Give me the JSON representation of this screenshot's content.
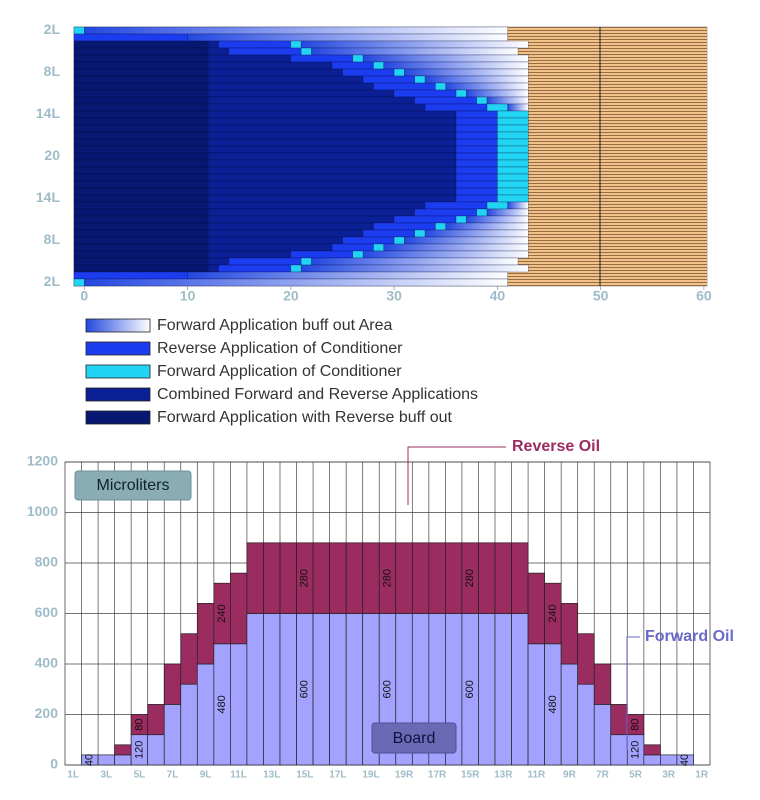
{
  "chart_data": [
    {
      "type": "stacked_barh",
      "categories": [
        "2L",
        null,
        null,
        null,
        null,
        null,
        "8L",
        null,
        null,
        null,
        null,
        null,
        "14L",
        null,
        null,
        null,
        null,
        null,
        "20",
        null,
        null,
        null,
        null,
        null,
        "14L",
        null,
        null,
        null,
        null,
        null,
        "8L",
        null,
        null,
        null,
        null,
        null,
        "2L"
      ],
      "series": [
        {
          "name": "Forward Application buff out Area",
          "color": [
            "#2448e0",
            "#ffffff"
          ],
          "values": [
            41,
            31,
            22,
            20,
            16,
            14,
            12,
            10,
            8,
            6,
            4,
            2,
            0,
            0,
            0,
            0,
            0,
            0,
            0,
            0,
            0,
            0,
            0,
            0,
            0,
            2,
            4,
            6,
            8,
            10,
            12,
            14,
            16,
            20,
            22,
            31,
            41
          ]
        },
        {
          "name": "Reverse Application of Conditioner",
          "color": "#1c3cf0",
          "values": [
            0,
            11,
            7,
            7,
            6,
            4,
            5,
            5,
            6,
            6,
            6,
            6,
            4,
            4,
            4,
            4,
            4,
            4,
            4,
            4,
            4,
            4,
            4,
            4,
            4,
            6,
            6,
            6,
            6,
            5,
            5,
            4,
            6,
            7,
            7,
            11,
            0
          ]
        },
        {
          "name": "Forward Application of Conditioner",
          "color": "#22d4f4",
          "values": [
            1,
            0,
            1,
            1,
            1,
            1,
            1,
            1,
            1,
            1,
            1,
            2,
            3,
            3,
            3,
            3,
            3,
            3,
            3,
            3,
            3,
            3,
            3,
            3,
            3,
            2,
            1,
            1,
            1,
            1,
            1,
            1,
            1,
            1,
            1,
            0,
            1
          ]
        },
        {
          "name": "Combined Forward and Reverse Applications",
          "color": "#0a2094",
          "values": [
            0,
            0,
            1,
            2,
            8,
            12,
            13,
            15,
            16,
            18,
            20,
            21,
            24,
            24,
            24,
            24,
            24,
            24,
            24,
            24,
            24,
            24,
            24,
            24,
            24,
            21,
            20,
            18,
            16,
            15,
            13,
            12,
            8,
            2,
            1,
            0,
            0
          ]
        },
        {
          "name": "Forward Application with Reverse buff out",
          "color": "#061872",
          "values": [
            0,
            0,
            13,
            13,
            13,
            13,
            13,
            13,
            13,
            13,
            13,
            13,
            13,
            13,
            13,
            13,
            13,
            13,
            13,
            13,
            13,
            13,
            13,
            13,
            13,
            13,
            13,
            13,
            13,
            13,
            13,
            13,
            13,
            13,
            13,
            0,
            0
          ]
        }
      ],
      "xlim": [
        -1,
        60.3
      ],
      "xticks": [
        0,
        10,
        20,
        30,
        40,
        50,
        60
      ]
    },
    {
      "type": "stacked_bar",
      "categories": [
        "1L",
        null,
        "3L",
        null,
        "5L",
        null,
        "7L",
        null,
        "9L",
        null,
        "11L",
        null,
        "13L",
        null,
        "15L",
        null,
        "17L",
        null,
        "19L",
        null,
        "19R",
        null,
        "17R",
        null,
        "15R",
        null,
        "13R",
        null,
        "11R",
        null,
        "9R",
        null,
        "7R",
        null,
        "5R",
        null,
        "3R",
        null,
        "1R"
      ],
      "series": [
        {
          "name": "Forward Oil",
          "color": "#a3a3ff",
          "values": [
            0,
            40,
            40,
            40,
            120,
            120,
            240,
            320,
            400,
            480,
            480,
            600,
            600,
            600,
            600,
            600,
            600,
            600,
            600,
            600,
            600,
            600,
            600,
            600,
            600,
            600,
            600,
            600,
            480,
            480,
            400,
            320,
            240,
            120,
            120,
            40,
            40,
            40,
            0
          ],
          "value_labels": [
            null,
            "40",
            null,
            null,
            "120",
            null,
            null,
            null,
            null,
            "480",
            null,
            null,
            null,
            null,
            "600",
            null,
            null,
            null,
            null,
            "600",
            null,
            null,
            null,
            null,
            "600",
            null,
            null,
            null,
            null,
            "480",
            null,
            null,
            null,
            null,
            "120",
            null,
            null,
            "40",
            null
          ]
        },
        {
          "name": "Reverse Oil",
          "color": "#9b2c60",
          "values": [
            0,
            0,
            0,
            40,
            80,
            120,
            160,
            200,
            240,
            240,
            280,
            280,
            280,
            280,
            280,
            280,
            280,
            280,
            280,
            280,
            280,
            280,
            280,
            280,
            280,
            280,
            280,
            280,
            280,
            240,
            240,
            200,
            160,
            120,
            80,
            40,
            0,
            0,
            0
          ],
          "value_labels": [
            null,
            null,
            null,
            null,
            "80",
            null,
            null,
            null,
            null,
            "240",
            null,
            null,
            null,
            null,
            "280",
            null,
            null,
            null,
            null,
            "280",
            null,
            null,
            null,
            null,
            "280",
            null,
            null,
            null,
            null,
            "240",
            null,
            null,
            null,
            null,
            "80",
            null,
            null,
            null,
            null
          ]
        }
      ],
      "ylim": [
        0,
        1200
      ],
      "yticks": [
        0,
        200,
        400,
        600,
        800,
        1000,
        1200
      ],
      "ylabel": "Microliters",
      "xlabel": "Board",
      "grid": true
    }
  ]
}
